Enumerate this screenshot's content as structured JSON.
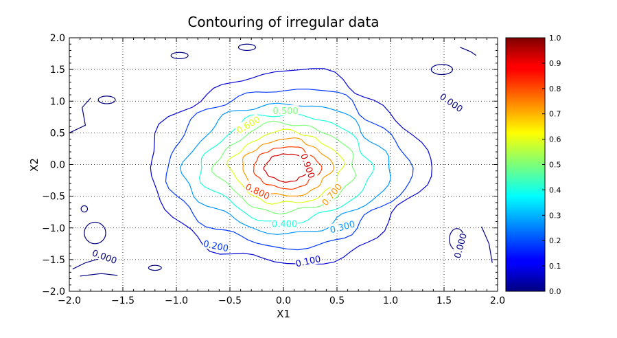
{
  "chart_data": {
    "type": "contour",
    "title": "Contouring of irregular data",
    "xlabel": "X1",
    "ylabel": "X2",
    "xlim": [
      -2.0,
      2.0
    ],
    "ylim": [
      -2.0,
      2.0
    ],
    "grid": true,
    "x_ticks": [
      "−2.0",
      "−1.5",
      "−1.0",
      "−0.5",
      "0.0",
      "0.5",
      "1.0",
      "1.5",
      "2.0"
    ],
    "y_ticks": [
      "−2.0",
      "−1.5",
      "−1.0",
      "−0.5",
      "0.0",
      "0.5",
      "1.0",
      "1.5",
      "2.0"
    ],
    "colormap": "jet",
    "colorbar": {
      "range": [
        0.0,
        1.0
      ],
      "ticks": [
        "0.0",
        "0.1",
        "0.2",
        "0.3",
        "0.4",
        "0.5",
        "0.6",
        "0.7",
        "0.8",
        "0.9",
        "1.0"
      ],
      "placement": "right"
    },
    "levels": [
      {
        "value": 0.0,
        "label": "0.000",
        "color": "#00007f",
        "rx": 0.0,
        "ry": 0.0
      },
      {
        "value": 0.1,
        "label": "0.100",
        "color": "#0000d4",
        "rx": 1.24,
        "ry": 1.52
      },
      {
        "value": 0.2,
        "label": "0.200",
        "color": "#0038ff",
        "rx": 1.08,
        "ry": 1.25
      },
      {
        "value": 0.3,
        "label": "0.300",
        "color": "#0098ff",
        "rx": 0.92,
        "ry": 1.02
      },
      {
        "value": 0.4,
        "label": "0.400",
        "color": "#19ffde",
        "rx": 0.76,
        "ry": 0.85
      },
      {
        "value": 0.5,
        "label": "0.500",
        "color": "#7cff79",
        "rx": 0.62,
        "ry": 0.7
      },
      {
        "value": 0.6,
        "label": "0.600",
        "color": "#deff19",
        "rx": 0.5,
        "ry": 0.57
      },
      {
        "value": 0.7,
        "label": "0.700",
        "color": "#ff9800",
        "rx": 0.4,
        "ry": 0.45
      },
      {
        "value": 0.8,
        "label": "0.800",
        "color": "#ff3800",
        "rx": 0.3,
        "ry": 0.33
      },
      {
        "value": 0.9,
        "label": "0.900",
        "color": "#d40000",
        "rx": 0.2,
        "ry": 0.22
      }
    ],
    "contour_labels": [
      {
        "text": "0.000",
        "x": 1.57,
        "y": 0.98,
        "rot": 35,
        "color": "#00007f"
      },
      {
        "text": "0.000",
        "x": -1.67,
        "y": -1.45,
        "rot": 20,
        "color": "#00007f"
      },
      {
        "text": "0.000",
        "x": 1.65,
        "y": -1.28,
        "rot": -75,
        "color": "#00007f"
      },
      {
        "text": "0.100",
        "x": 0.23,
        "y": -1.52,
        "rot": -12,
        "color": "#0000d4"
      },
      {
        "text": "0.200",
        "x": -0.63,
        "y": -1.28,
        "rot": 12,
        "color": "#0038ff"
      },
      {
        "text": "0.300",
        "x": 0.55,
        "y": -0.98,
        "rot": -15,
        "color": "#0098ff"
      },
      {
        "text": "0.400",
        "x": 0.01,
        "y": -0.93,
        "rot": 0,
        "color": "#19ffde"
      },
      {
        "text": "0.500",
        "x": 0.02,
        "y": 0.85,
        "rot": 0,
        "color": "#7cff79"
      },
      {
        "text": "0.600",
        "x": -0.33,
        "y": 0.63,
        "rot": -30,
        "color": "#deff19"
      },
      {
        "text": "0.700",
        "x": 0.45,
        "y": -0.47,
        "rot": -50,
        "color": "#ff9800"
      },
      {
        "text": "0.800",
        "x": -0.24,
        "y": -0.42,
        "rot": 25,
        "color": "#ff3800"
      },
      {
        "text": "0.900",
        "x": 0.23,
        "y": -0.02,
        "rot": 70,
        "color": "#d40000"
      }
    ]
  }
}
